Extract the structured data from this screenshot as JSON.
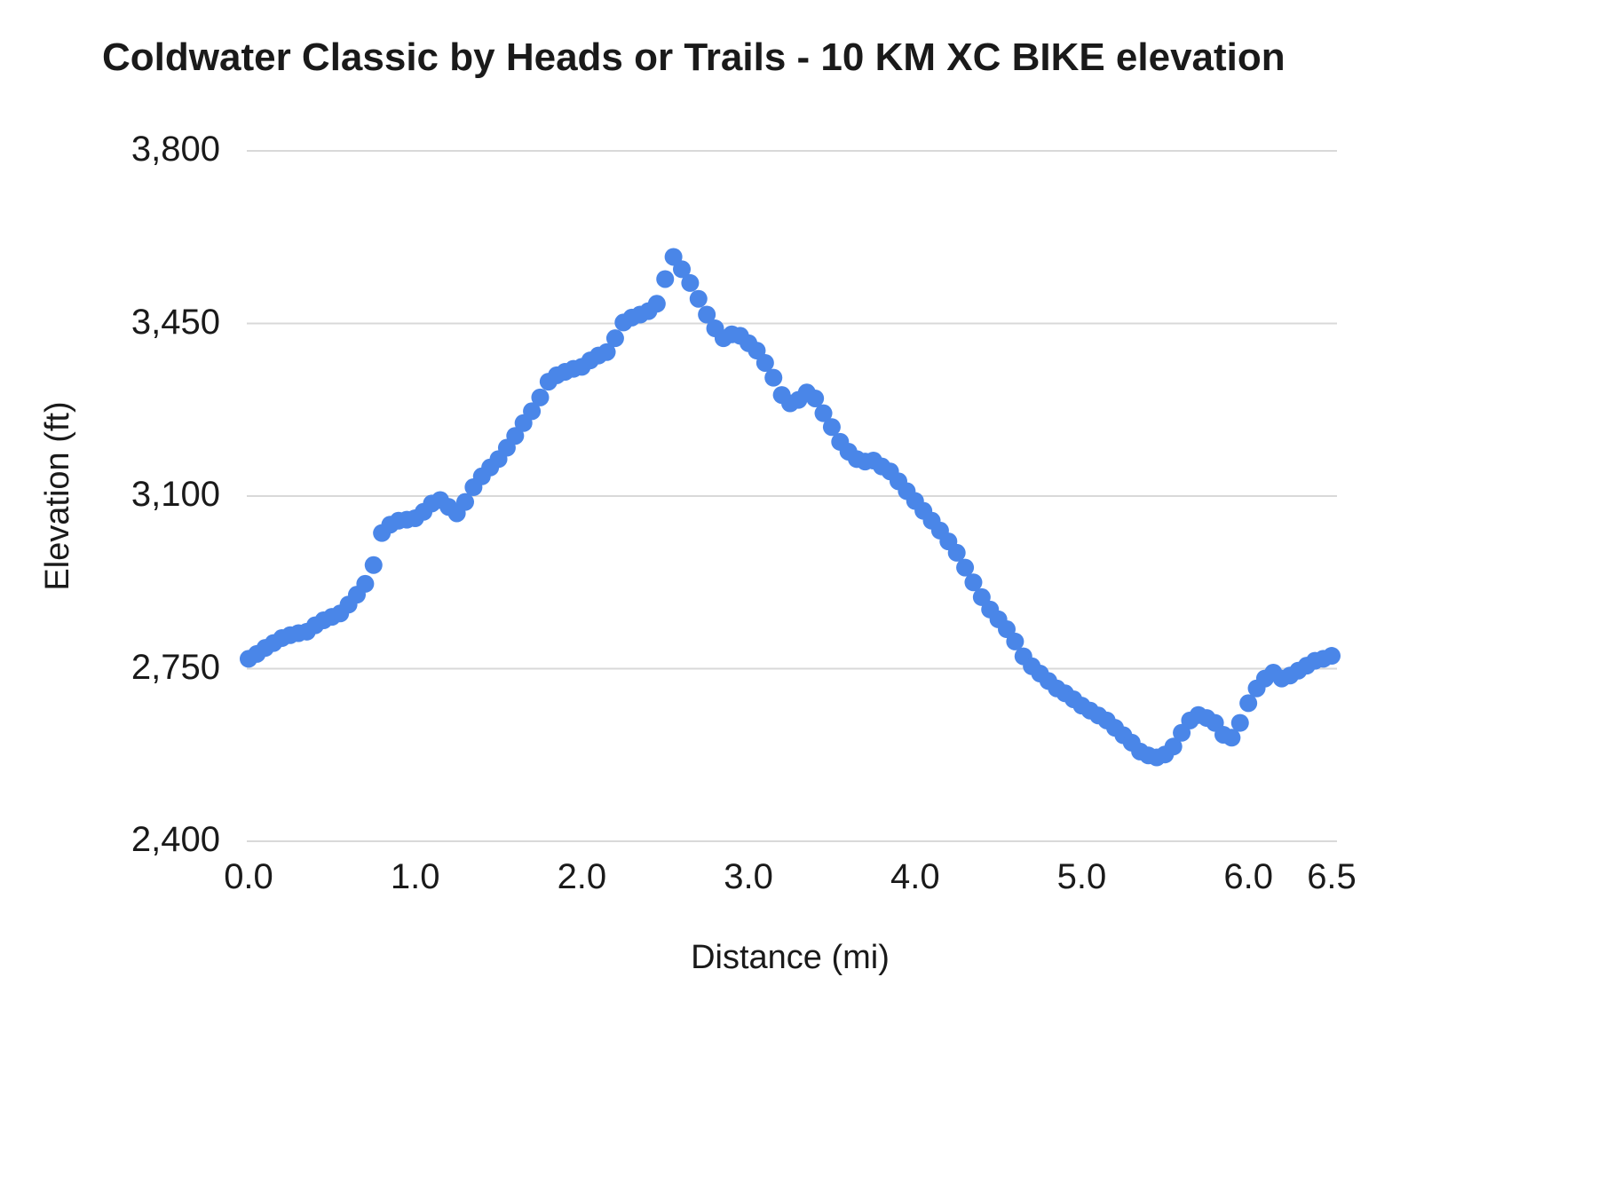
{
  "chart_data": {
    "type": "scatter",
    "title": "Coldwater Classic by Heads or Trails - 10 KM XC BIKE elevation",
    "xlabel": "Distance (mi)",
    "ylabel": "Elevation (ft)",
    "xlim": [
      0,
      6.5
    ],
    "ylim": [
      2400,
      3800
    ],
    "grid": true,
    "legend_position": "none",
    "point_color": "#4a86e8",
    "gridline_color": "#d9d9d9",
    "text_color": "#1a1a1a",
    "x_ticks": [
      0,
      1,
      2,
      3,
      4,
      5,
      6,
      6.5
    ],
    "x_tick_labels": [
      "0.0",
      "1.0",
      "2.0",
      "3.0",
      "4.0",
      "5.0",
      "6.0",
      "6.5"
    ],
    "y_ticks": [
      2400,
      2750,
      3100,
      3450,
      3800
    ],
    "y_tick_labels": [
      "2,400",
      "2,750",
      "3,100",
      "3,450",
      "3,800"
    ],
    "x_units": "mi",
    "y_units": "ft",
    "x_start": 0,
    "x_step": 0.05,
    "elevations_ft": [
      2770,
      2780,
      2792,
      2802,
      2812,
      2818,
      2822,
      2825,
      2838,
      2848,
      2855,
      2862,
      2880,
      2900,
      2922,
      2960,
      3025,
      3042,
      3050,
      3052,
      3055,
      3068,
      3085,
      3092,
      3078,
      3065,
      3088,
      3118,
      3140,
      3158,
      3175,
      3198,
      3222,
      3248,
      3272,
      3300,
      3332,
      3345,
      3352,
      3358,
      3362,
      3375,
      3385,
      3392,
      3420,
      3452,
      3462,
      3468,
      3475,
      3490,
      3540,
      3585,
      3560,
      3532,
      3500,
      3468,
      3440,
      3420,
      3428,
      3425,
      3410,
      3395,
      3370,
      3340,
      3305,
      3288,
      3295,
      3310,
      3298,
      3268,
      3240,
      3210,
      3190,
      3175,
      3170,
      3172,
      3160,
      3150,
      3130,
      3110,
      3090,
      3070,
      3050,
      3030,
      3008,
      2985,
      2955,
      2925,
      2895,
      2870,
      2850,
      2830,
      2805,
      2775,
      2755,
      2740,
      2725,
      2710,
      2700,
      2688,
      2675,
      2665,
      2655,
      2645,
      2630,
      2615,
      2600,
      2582,
      2574,
      2570,
      2576,
      2592,
      2620,
      2645,
      2656,
      2650,
      2640,
      2616,
      2610,
      2640,
      2680,
      2710,
      2730,
      2742,
      2730,
      2736,
      2746,
      2756,
      2766,
      2770,
      2776
    ]
  }
}
